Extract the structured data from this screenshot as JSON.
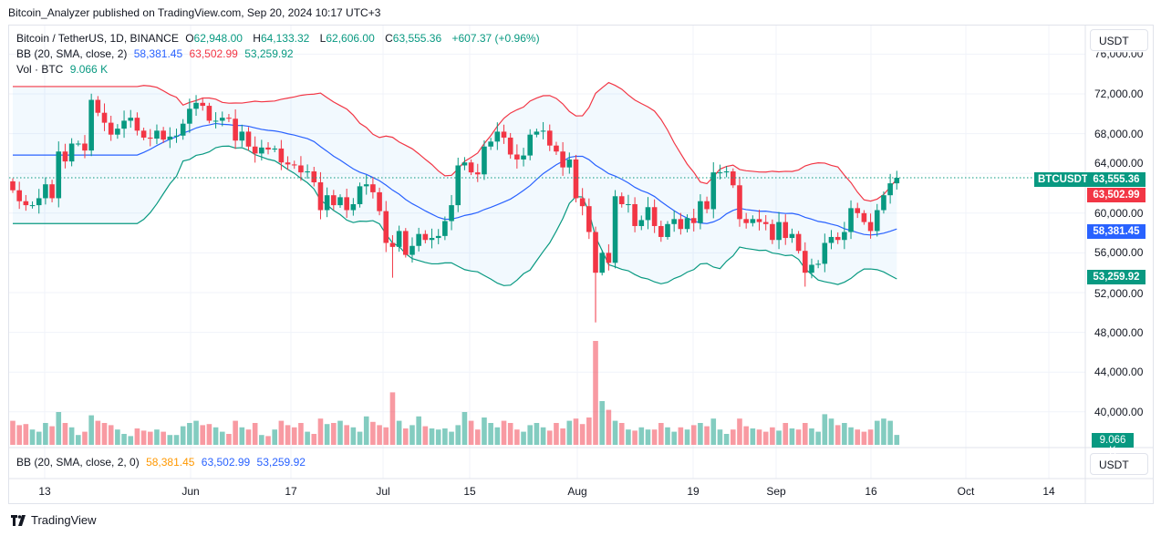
{
  "published": "Bitcoin_Analyzer published on TradingView.com, Sep 20, 2024 10:17 UTC+3",
  "symbol": {
    "name": "Bitcoin / TetherUS, 1D, BINANCE",
    "o_label": "O",
    "o": "62,948.00",
    "h_label": "H",
    "h": "64,133.32",
    "l_label": "L",
    "l": "62,606.00",
    "c_label": "C",
    "c": "63,555.36",
    "change": "+607.37 (+0.96%)"
  },
  "bb_legend": {
    "label": "BB (20, SMA, close, 2)",
    "basis": "58,381.45",
    "upper": "63,502.99",
    "lower": "53,259.92"
  },
  "vol_legend": {
    "label": "Vol · BTC",
    "value": "9.066 K"
  },
  "bottom_pane": {
    "label": "BB (20, SMA, close, 2, 0)",
    "basis": "58,381.45",
    "upper": "63,502.99",
    "lower": "53,259.92"
  },
  "currency_button": "USDT",
  "currency_button_bottom": "USDT",
  "tags": {
    "symbol": "BTCUSDT",
    "price": "63,555.36",
    "upper": "63,502.99",
    "basis": "58,381.45",
    "lower": "53,259.92",
    "volume": "9.066 K"
  },
  "price_axis": [
    "76,000.00",
    "72,000.00",
    "68,000.00",
    "64,000.00",
    "60,000.00",
    "56,000.00",
    "52,000.00",
    "48,000.00",
    "44,000.00",
    "40,000.00"
  ],
  "time_axis": [
    "13",
    "Jun",
    "17",
    "Jul",
    "15",
    "Aug",
    "19",
    "Sep",
    "16",
    "Oct",
    "14"
  ],
  "brand": "TradingView",
  "colors": {
    "up": "#089981",
    "down": "#f23645",
    "basis": "#2962ff",
    "upper": "#f23645",
    "lower": "#089981"
  },
  "chart_data": {
    "type": "candlestick",
    "title": "Bitcoin / TetherUS, 1D, BINANCE",
    "start_date": "2024-05-08",
    "end_date": "2024-09-20",
    "unit": "thousand USDT",
    "first_open": 63.2,
    "closes": [
      62.3,
      61.2,
      60.8,
      60.8,
      61.5,
      62.9,
      61.5,
      66.2,
      65.2,
      67.0,
      67.0,
      66.3,
      71.4,
      70.1,
      69.1,
      67.9,
      68.5,
      69.3,
      69.6,
      68.3,
      67.6,
      67.5,
      68.3,
      67.4,
      67.7,
      67.8,
      69.0,
      70.5,
      71.1,
      70.8,
      69.3,
      69.3,
      69.6,
      69.5,
      67.3,
      68.2,
      66.7,
      66.0,
      66.6,
      66.4,
      66.5,
      65.1,
      64.9,
      64.8,
      64.1,
      64.2,
      63.1,
      60.3,
      61.8,
      60.8,
      61.6,
      60.3,
      60.9,
      62.7,
      62.9,
      62.1,
      60.2,
      57.0,
      56.6,
      58.2,
      55.8,
      56.7,
      57.9,
      57.3,
      57.5,
      57.7,
      59.2,
      60.8,
      64.8,
      65.1,
      64.1,
      63.9,
      66.7,
      67.2,
      68.2,
      67.6,
      65.9,
      65.4,
      65.8,
      67.9,
      68.2,
      68.3,
      66.8,
      66.2,
      64.6,
      65.4,
      61.5,
      60.7,
      58.1,
      54.0,
      56.0,
      55.0,
      61.7,
      60.9,
      60.9,
      58.7,
      59.3,
      60.6,
      58.7,
      57.6,
      58.9,
      59.4,
      58.4,
      59.5,
      59.0,
      61.2,
      60.4,
      64.1,
      64.1,
      64.2,
      62.8,
      59.4,
      59.0,
      59.4,
      59.1,
      58.9,
      57.3,
      59.1,
      57.5,
      57.9,
      56.2,
      54.0,
      54.8,
      54.9,
      57.0,
      57.6,
      57.3,
      58.1,
      60.5,
      60.0,
      59.1,
      58.2,
      60.3,
      61.8,
      63.0,
      63.56
    ],
    "notable_lows": {
      "58": 53.5,
      "89": 49.0,
      "121": 52.6
    },
    "volume_k": [
      22,
      18,
      19,
      14,
      12,
      20,
      17,
      30,
      20,
      16,
      9,
      12,
      27,
      22,
      20,
      18,
      14,
      10,
      8,
      15,
      13,
      12,
      14,
      12,
      9,
      9,
      17,
      20,
      22,
      18,
      19,
      16,
      12,
      10,
      22,
      16,
      14,
      20,
      9,
      8,
      14,
      22,
      18,
      16,
      20,
      12,
      10,
      24,
      19,
      20,
      22,
      18,
      16,
      12,
      26,
      21,
      18,
      16,
      48,
      22,
      15,
      18,
      26,
      17,
      15,
      14,
      15,
      12,
      18,
      30,
      22,
      14,
      25,
      20,
      16,
      22,
      20,
      14,
      12,
      18,
      20,
      16,
      13,
      20,
      15,
      22,
      24,
      19,
      25,
      95,
      40,
      32,
      22,
      20,
      14,
      13,
      16,
      14,
      14,
      20,
      16,
      12,
      16,
      14,
      18,
      20,
      17,
      24,
      14,
      10,
      14,
      24,
      17,
      15,
      14,
      12,
      16,
      13,
      20,
      15,
      14,
      20,
      15,
      12,
      28,
      24,
      18,
      20,
      16,
      14,
      12,
      14,
      22,
      24,
      22,
      9.066
    ],
    "indicators": [
      "BB (20, SMA, close, 2)",
      "Volume"
    ],
    "ylim": [
      38,
      78
    ]
  }
}
